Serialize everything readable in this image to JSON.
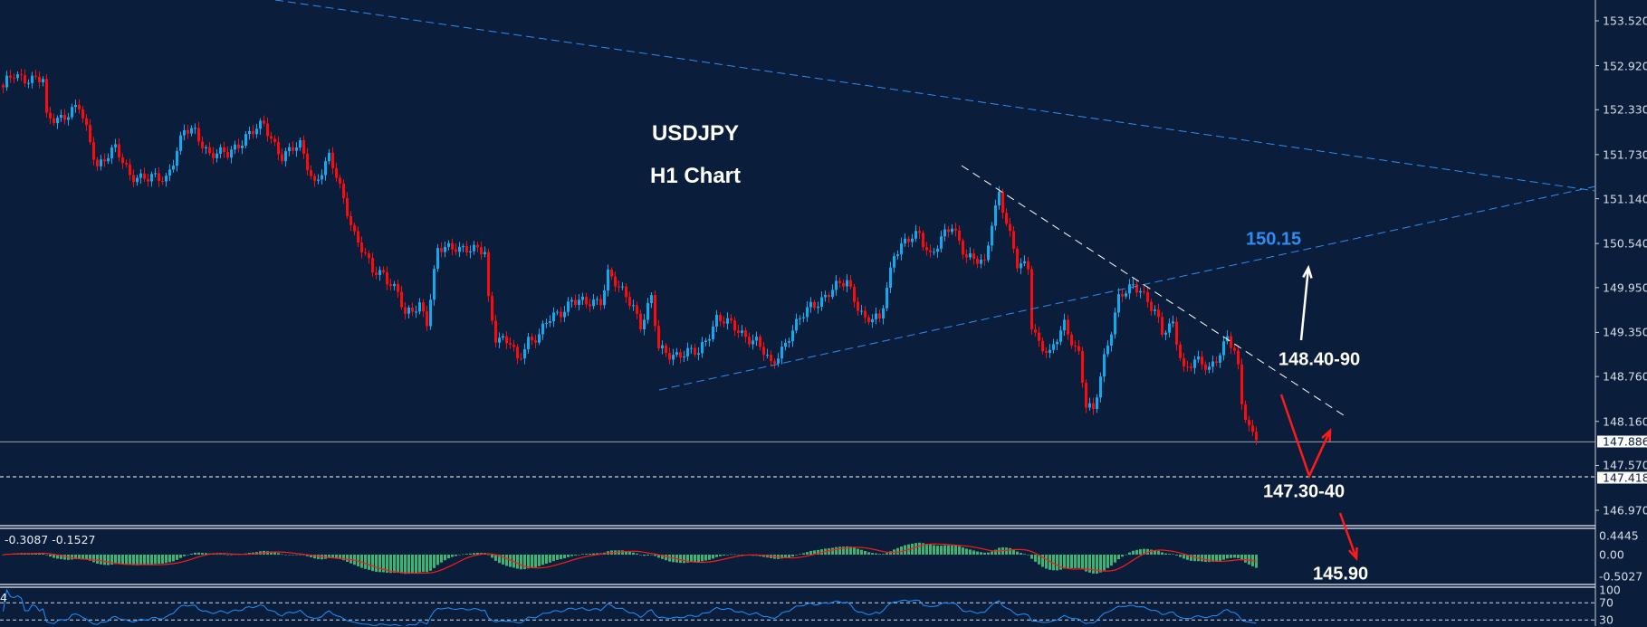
{
  "chart_data": {
    "type": "candlestick",
    "title": "USDJPY",
    "subtitle": "H1 Chart",
    "symbol": "USDJPY",
    "timeframe": "H1",
    "colors": {
      "background": "#0a1e3b",
      "up": "#14a9ec",
      "down": "#ff0a0a",
      "macd_histogram": "#3cb371",
      "macd_signal": "#ff1a1a",
      "rsi": "#1e90ff",
      "trendline_blue": "#2f8cf0",
      "trendline_white": "#ffffff"
    },
    "y_axis": {
      "ticks": [
        "153.520",
        "152.920",
        "152.330",
        "151.730",
        "151.140",
        "150.540",
        "149.950",
        "149.350",
        "148.760",
        "148.160",
        "147.570",
        "146.970"
      ],
      "range": [
        146.8,
        153.7
      ]
    },
    "price_path_note_free": true,
    "price_path": [
      [
        0,
        152.63
      ],
      [
        3,
        152.8
      ],
      [
        11,
        152.71
      ],
      [
        12,
        152.2
      ],
      [
        17,
        152.26
      ],
      [
        21,
        152.35
      ],
      [
        24,
        151.91
      ],
      [
        26,
        151.6
      ],
      [
        31,
        151.79
      ],
      [
        35,
        151.48
      ],
      [
        40,
        151.39
      ],
      [
        45,
        151.43
      ],
      [
        50,
        152.03
      ],
      [
        53,
        152.03
      ],
      [
        57,
        151.75
      ],
      [
        62,
        151.72
      ],
      [
        67,
        151.99
      ],
      [
        72,
        152.11
      ],
      [
        77,
        151.72
      ],
      [
        82,
        151.84
      ],
      [
        86,
        151.36
      ],
      [
        90,
        151.67
      ],
      [
        92,
        151.43
      ],
      [
        95,
        151.0
      ],
      [
        97,
        150.67
      ],
      [
        100,
        150.35
      ],
      [
        102,
        150.16
      ],
      [
        105,
        150.16
      ],
      [
        109,
        149.87
      ],
      [
        111,
        149.55
      ],
      [
        115,
        149.75
      ],
      [
        117,
        149.51
      ],
      [
        120,
        150.43
      ],
      [
        125,
        150.52
      ],
      [
        130,
        150.43
      ],
      [
        133,
        150.43
      ],
      [
        134,
        149.8
      ],
      [
        136,
        149.31
      ],
      [
        140,
        149.19
      ],
      [
        142,
        148.95
      ],
      [
        145,
        149.27
      ],
      [
        148,
        149.31
      ],
      [
        150,
        149.47
      ],
      [
        154,
        149.63
      ],
      [
        157,
        149.8
      ],
      [
        161,
        149.71
      ],
      [
        165,
        149.8
      ],
      [
        167,
        150.16
      ],
      [
        170,
        149.92
      ],
      [
        174,
        149.71
      ],
      [
        176,
        149.47
      ],
      [
        179,
        149.8
      ],
      [
        181,
        149.11
      ],
      [
        184,
        149.07
      ],
      [
        192,
        149.07
      ],
      [
        197,
        149.55
      ],
      [
        208,
        149.23
      ],
      [
        212,
        148.9
      ],
      [
        217,
        149.31
      ],
      [
        223,
        149.71
      ],
      [
        233,
        150.04
      ],
      [
        238,
        149.51
      ],
      [
        242,
        149.51
      ],
      [
        246,
        150.43
      ],
      [
        253,
        150.67
      ],
      [
        256,
        150.4
      ],
      [
        262,
        150.76
      ],
      [
        266,
        150.4
      ],
      [
        271,
        150.23
      ],
      [
        273,
        150.83
      ],
      [
        275,
        151.24
      ],
      [
        278,
        150.64
      ],
      [
        280,
        150.23
      ],
      [
        283,
        150.23
      ],
      [
        284,
        149.47
      ],
      [
        286,
        149.23
      ],
      [
        289,
        149.03
      ],
      [
        293,
        149.47
      ],
      [
        297,
        149.07
      ],
      [
        299,
        148.35
      ],
      [
        301,
        148.27
      ],
      [
        304,
        149.03
      ],
      [
        308,
        149.8
      ],
      [
        312,
        149.95
      ],
      [
        314,
        149.95
      ],
      [
        318,
        149.63
      ],
      [
        320,
        149.31
      ],
      [
        323,
        149.47
      ],
      [
        326,
        148.87
      ],
      [
        329,
        148.95
      ],
      [
        333,
        148.87
      ],
      [
        338,
        149.27
      ],
      [
        340,
        149.07
      ],
      [
        341,
        148.83
      ],
      [
        342,
        148.39
      ],
      [
        344,
        148.11
      ],
      [
        346,
        147.91
      ]
    ],
    "current_price": {
      "value": 147.886,
      "label": "147.886"
    },
    "support_line": {
      "value": 147.418,
      "label": "147.418"
    },
    "annotations": {
      "target_up": "150.15",
      "resistance": "148.40-90",
      "support": "147.30-40",
      "target_down": "145.90"
    },
    "macd": {
      "header": "-0.3087 -0.1527",
      "ticks": [
        "0.4445",
        "0.00",
        "-0.5027"
      ]
    },
    "rsi": {
      "header": "4",
      "ticks": [
        "100",
        "70",
        "30"
      ]
    }
  }
}
